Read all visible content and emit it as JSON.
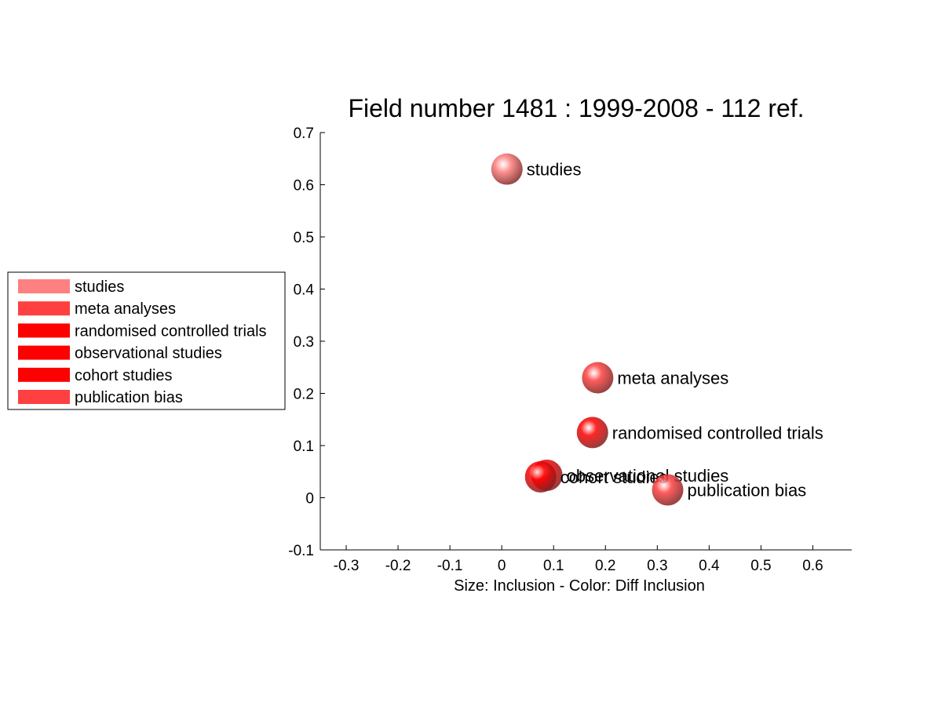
{
  "chart_data": {
    "type": "scatter",
    "title": "Field number 1481 : 1999-2008  - 112 ref.",
    "xlabel": "Size: Inclusion - Color: Diff Inclusion",
    "ylabel": "",
    "xlim": [
      -0.35,
      0.675
    ],
    "ylim": [
      -0.1,
      0.7
    ],
    "xticks": [
      "-0.3",
      "-0.2",
      "-0.1",
      "0",
      "0.1",
      "0.2",
      "0.3",
      "0.4",
      "0.5",
      "0.6"
    ],
    "yticks": [
      "-0.1",
      "0",
      "0.1",
      "0.2",
      "0.3",
      "0.4",
      "0.5",
      "0.6",
      "0.7"
    ],
    "grid": false,
    "legend_position": "left",
    "points": [
      {
        "label": "studies",
        "x": 0.01,
        "y": 0.63,
        "color": "#ff8080"
      },
      {
        "label": "meta analyses",
        "x": 0.185,
        "y": 0.23,
        "color": "#ff4040"
      },
      {
        "label": "randomised controlled trials",
        "x": 0.175,
        "y": 0.125,
        "color": "#ff0000"
      },
      {
        "label": "observational studies",
        "x": 0.087,
        "y": 0.043,
        "color": "#ff0000"
      },
      {
        "label": "cohort studies",
        "x": 0.075,
        "y": 0.04,
        "color": "#ff0000"
      },
      {
        "label": "publication bias",
        "x": 0.32,
        "y": 0.015,
        "color": "#ff4040"
      }
    ],
    "legend": [
      {
        "label": "studies",
        "color": "#ff8080"
      },
      {
        "label": "meta analyses",
        "color": "#ff4040"
      },
      {
        "label": "randomised controlled trials",
        "color": "#ff0000"
      },
      {
        "label": "observational studies",
        "color": "#ff0000"
      },
      {
        "label": "cohort studies",
        "color": "#ff0000"
      },
      {
        "label": "publication bias",
        "color": "#ff4040"
      }
    ]
  }
}
